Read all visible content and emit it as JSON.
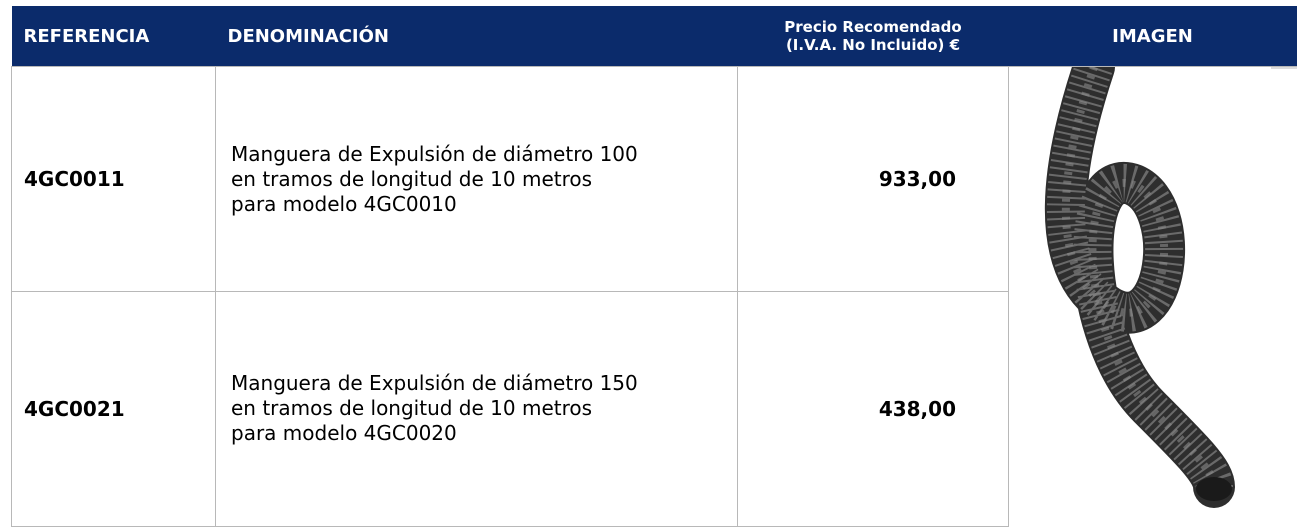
{
  "table": {
    "header": [
      "REFERENCIA",
      "DENOMINACIÓN",
      [
        "Precio Recomendado",
        "(I.V.A. No Incluido) €"
      ],
      "IMAGEN"
    ],
    "rows": [
      {
        "reference": "4GC0011",
        "description": [
          "Manguera de Expulsión de diámetro 100",
          "en tramos de longitud de 10 metros",
          "para modelo 4GC0010"
        ],
        "price": "933,00"
      },
      {
        "reference": "4GC0021",
        "description": [
          "Manguera de Expulsión de diámetro 150",
          "en tramos de longitud de 10 metros",
          "para modelo 4GC0020"
        ],
        "price": "438,00"
      }
    ]
  }
}
